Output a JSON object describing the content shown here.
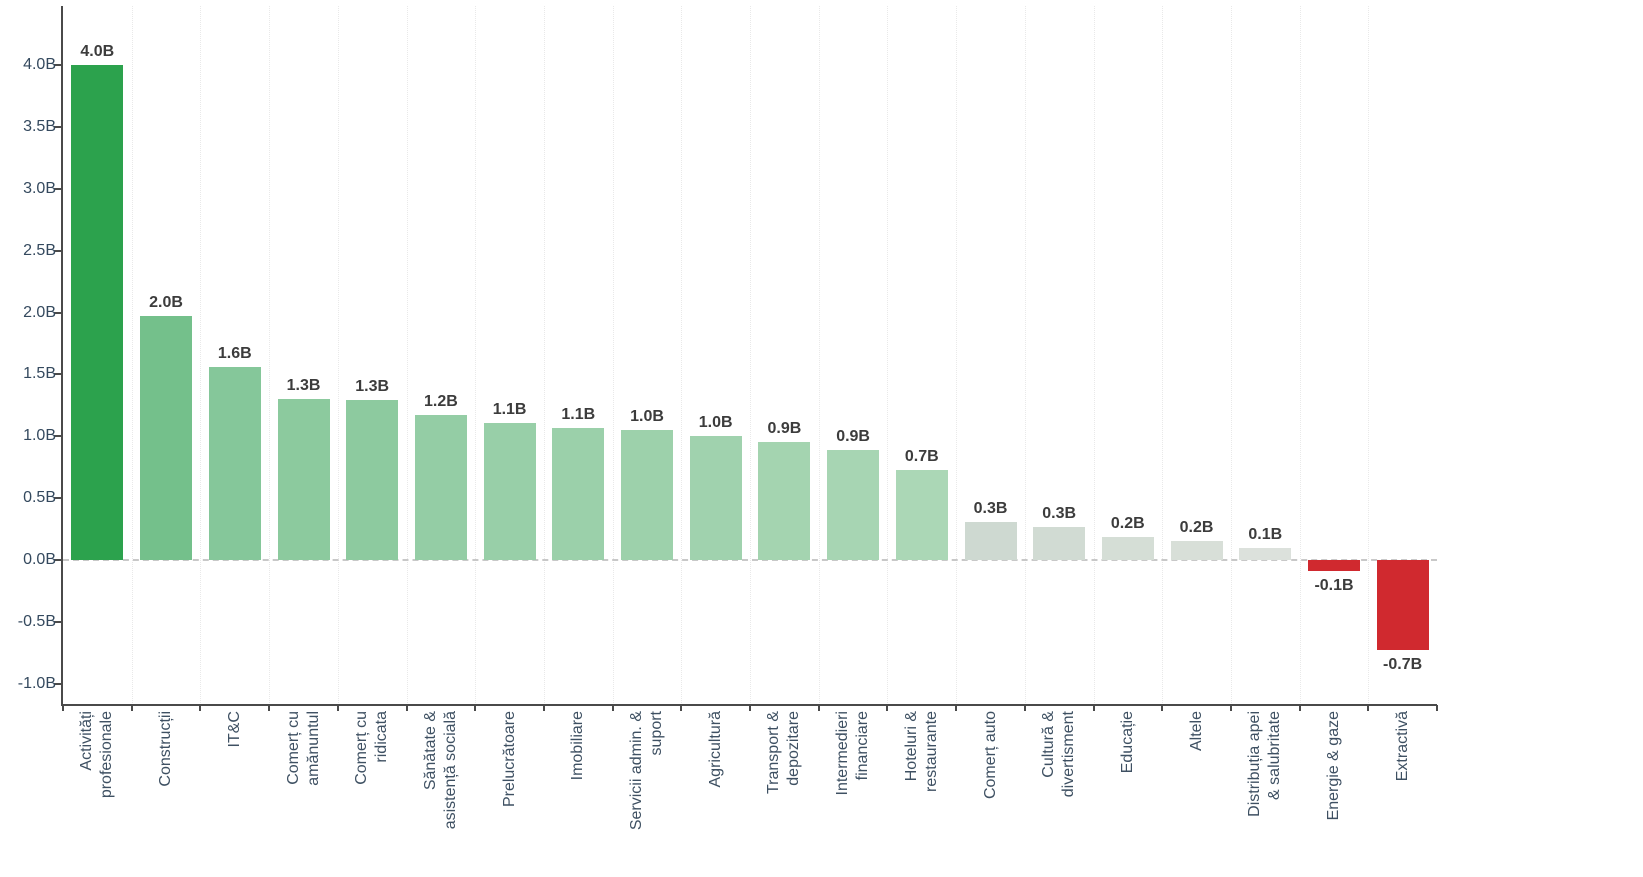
{
  "chart_data": {
    "type": "bar",
    "title": "",
    "value_unit": "B",
    "ylim": [
      -1.17,
      4.48
    ],
    "grid": "vertical-dotted-category-separators",
    "zero_line": "dashed",
    "legend": "none",
    "y_axis_ticks": [
      {
        "value": 4.0,
        "label": "4.0B"
      },
      {
        "value": 3.5,
        "label": "3.5B"
      },
      {
        "value": 3.0,
        "label": "3.0B"
      },
      {
        "value": 2.5,
        "label": "2.5B"
      },
      {
        "value": 2.0,
        "label": "2.0B"
      },
      {
        "value": 1.5,
        "label": "1.5B"
      },
      {
        "value": 1.0,
        "label": "1.0B"
      },
      {
        "value": 0.5,
        "label": "0.5B"
      },
      {
        "value": 0.0,
        "label": "0.0B"
      },
      {
        "value": -0.5,
        "label": "-0.5B"
      },
      {
        "value": -1.0,
        "label": "-1.0B"
      }
    ],
    "bars": [
      {
        "category": "Activități profesionale",
        "label_lines": [
          "Activități",
          "profesionale"
        ],
        "value": 4.0,
        "value_label": "4.0B",
        "color": "#2ca24d"
      },
      {
        "category": "Construcții",
        "label_lines": [
          "Construcții"
        ],
        "value": 1.97,
        "value_label": "2.0B",
        "color": "#74c08b"
      },
      {
        "category": "IT&C",
        "label_lines": [
          "IT&C"
        ],
        "value": 1.56,
        "value_label": "1.6B",
        "color": "#85c79a"
      },
      {
        "category": "Comerț cu amănuntul",
        "label_lines": [
          "Comerț cu",
          "amănuntul"
        ],
        "value": 1.3,
        "value_label": "1.3B",
        "color": "#8cca9e"
      },
      {
        "category": "Comerț cu ridicata",
        "label_lines": [
          "Comerț cu",
          "ridicata"
        ],
        "value": 1.29,
        "value_label": "1.3B",
        "color": "#8dca9f"
      },
      {
        "category": "Sănătate & asistență socială",
        "label_lines": [
          "Sănătate &",
          "asistență socială"
        ],
        "value": 1.17,
        "value_label": "1.2B",
        "color": "#94cda5"
      },
      {
        "category": "Prelucrătoare",
        "label_lines": [
          "Prelucrătoare"
        ],
        "value": 1.11,
        "value_label": "1.1B",
        "color": "#98cfa8"
      },
      {
        "category": "Imobiliare",
        "label_lines": [
          "Imobiliare"
        ],
        "value": 1.07,
        "value_label": "1.1B",
        "color": "#9bd0aa"
      },
      {
        "category": "Servicii admin. & suport",
        "label_lines": [
          "Servicii admin. &",
          "suport"
        ],
        "value": 1.05,
        "value_label": "1.0B",
        "color": "#9dd1ab"
      },
      {
        "category": "Agricultură",
        "label_lines": [
          "Agricultură"
        ],
        "value": 1.0,
        "value_label": "1.0B",
        "color": "#a0d2ae"
      },
      {
        "category": "Transport & depozitare",
        "label_lines": [
          "Transport &",
          "depozitare"
        ],
        "value": 0.95,
        "value_label": "0.9B",
        "color": "#a4d4b0"
      },
      {
        "category": "Intermedieri financiare",
        "label_lines": [
          "Intermedieri",
          "financiare"
        ],
        "value": 0.89,
        "value_label": "0.9B",
        "color": "#a7d5b3"
      },
      {
        "category": "Hoteluri & restaurante",
        "label_lines": [
          "Hoteluri &",
          "restaurante"
        ],
        "value": 0.73,
        "value_label": "0.7B",
        "color": "#abd7b6"
      },
      {
        "category": "Comerț auto",
        "label_lines": [
          "Comerț auto"
        ],
        "value": 0.31,
        "value_label": "0.3B",
        "color": "#ced9d1"
      },
      {
        "category": "Cultură & divertisment",
        "label_lines": [
          "Cultură &",
          "divertisment"
        ],
        "value": 0.27,
        "value_label": "0.3B",
        "color": "#d1dbd3"
      },
      {
        "category": "Educație",
        "label_lines": [
          "Educație"
        ],
        "value": 0.19,
        "value_label": "0.2B",
        "color": "#d5ded6"
      },
      {
        "category": "Altele",
        "label_lines": [
          "Altele"
        ],
        "value": 0.15,
        "value_label": "0.2B",
        "color": "#d8dfd8"
      },
      {
        "category": "Distribuția apei & salubritate",
        "label_lines": [
          "Distribuția apei",
          "& salubritate"
        ],
        "value": 0.1,
        "value_label": "0.1B",
        "color": "#dce1dc"
      },
      {
        "category": "Energie & gaze",
        "label_lines": [
          "Energie & gaze"
        ],
        "value": -0.09,
        "value_label": "-0.1B",
        "color": "#d0292f"
      },
      {
        "category": "Extractivă",
        "label_lines": [
          "Extractivă"
        ],
        "value": -0.73,
        "value_label": "-0.7B",
        "color": "#d0292f"
      }
    ],
    "colors": {
      "positive_max": "#2ca24d",
      "negative": "#d0292f",
      "axis_line": "#4a4a4a",
      "y_label": "#34495e",
      "x_label": "#3e5062",
      "value_label": "#3c3c3c",
      "zero_line": "#c8c8c8",
      "gridline": "#e9e9e9",
      "background": "#ffffff"
    }
  }
}
